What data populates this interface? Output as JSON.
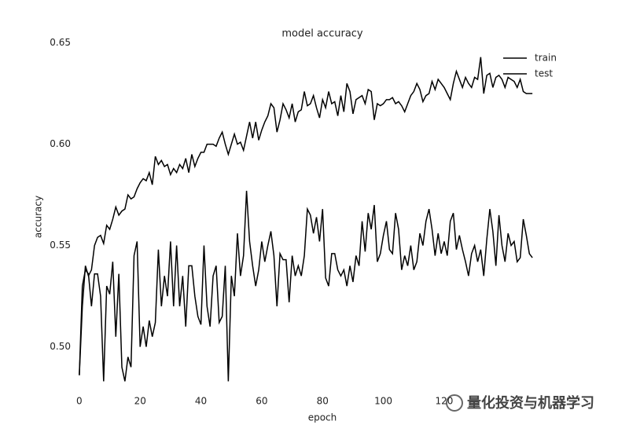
{
  "chart_data": {
    "type": "line",
    "title": "model accuracy",
    "x_label": "epoch",
    "y_label": "accuracy",
    "x": [
      0,
      1,
      2,
      3,
      4,
      5,
      6,
      7,
      8,
      9,
      10,
      11,
      12,
      13,
      14,
      15,
      16,
      17,
      18,
      19,
      20,
      21,
      22,
      23,
      24,
      25,
      26,
      27,
      28,
      29,
      30,
      31,
      32,
      33,
      34,
      35,
      36,
      37,
      38,
      39,
      40,
      41,
      42,
      43,
      44,
      45,
      46,
      47,
      48,
      49,
      50,
      51,
      52,
      53,
      54,
      55,
      56,
      57,
      58,
      59,
      60,
      61,
      62,
      63,
      64,
      65,
      66,
      67,
      68,
      69,
      70,
      71,
      72,
      73,
      74,
      75,
      76,
      77,
      78,
      79,
      80,
      81,
      82,
      83,
      84,
      85,
      86,
      87,
      88,
      89,
      90,
      91,
      92,
      93,
      94,
      95,
      96,
      97,
      98,
      99,
      100,
      101,
      102,
      103,
      104,
      105,
      106,
      107,
      108,
      109,
      110,
      111,
      112,
      113,
      114,
      115,
      116,
      117,
      118,
      119,
      120,
      121,
      122,
      123,
      124,
      125,
      126,
      127,
      128,
      129,
      130,
      131,
      132,
      133,
      134,
      135,
      136,
      137,
      138,
      139,
      140,
      141,
      142,
      143,
      144,
      145,
      146,
      147,
      148,
      149
    ],
    "series": [
      {
        "name": "train",
        "color": "#000000",
        "values": [
          0.486,
          0.52,
          0.54,
          0.535,
          0.538,
          0.55,
          0.554,
          0.555,
          0.551,
          0.56,
          0.558,
          0.563,
          0.569,
          0.565,
          0.567,
          0.568,
          0.575,
          0.573,
          0.574,
          0.578,
          0.581,
          0.583,
          0.582,
          0.586,
          0.58,
          0.594,
          0.59,
          0.592,
          0.589,
          0.59,
          0.585,
          0.588,
          0.586,
          0.59,
          0.588,
          0.593,
          0.586,
          0.595,
          0.589,
          0.593,
          0.596,
          0.596,
          0.6,
          0.6,
          0.6,
          0.599,
          0.603,
          0.606,
          0.6,
          0.595,
          0.6,
          0.605,
          0.6,
          0.601,
          0.597,
          0.604,
          0.611,
          0.603,
          0.611,
          0.602,
          0.607,
          0.611,
          0.614,
          0.62,
          0.618,
          0.606,
          0.612,
          0.62,
          0.617,
          0.613,
          0.62,
          0.611,
          0.616,
          0.617,
          0.626,
          0.619,
          0.62,
          0.624,
          0.618,
          0.613,
          0.622,
          0.618,
          0.626,
          0.62,
          0.621,
          0.614,
          0.624,
          0.616,
          0.63,
          0.626,
          0.615,
          0.622,
          0.623,
          0.624,
          0.62,
          0.627,
          0.626,
          0.612,
          0.62,
          0.619,
          0.62,
          0.622,
          0.622,
          0.623,
          0.62,
          0.621,
          0.619,
          0.616,
          0.62,
          0.624,
          0.626,
          0.63,
          0.627,
          0.621,
          0.624,
          0.625,
          0.631,
          0.627,
          0.632,
          0.63,
          0.628,
          0.625,
          0.622,
          0.63,
          0.636,
          0.632,
          0.628,
          0.633,
          0.63,
          0.628,
          0.633,
          0.632,
          0.643,
          0.625,
          0.634,
          0.635,
          0.628,
          0.633,
          0.634,
          0.632,
          0.628,
          0.633,
          0.632,
          0.631,
          0.628,
          0.632,
          0.626,
          0.625,
          0.625,
          0.625
        ]
      },
      {
        "name": "test",
        "color": "#000000",
        "values": [
          0.486,
          0.53,
          0.538,
          0.536,
          0.52,
          0.536,
          0.536,
          0.525,
          0.483,
          0.53,
          0.526,
          0.542,
          0.505,
          0.536,
          0.49,
          0.483,
          0.495,
          0.49,
          0.545,
          0.552,
          0.5,
          0.51,
          0.5,
          0.513,
          0.505,
          0.512,
          0.548,
          0.52,
          0.535,
          0.525,
          0.552,
          0.52,
          0.55,
          0.52,
          0.535,
          0.51,
          0.54,
          0.54,
          0.525,
          0.515,
          0.511,
          0.55,
          0.52,
          0.51,
          0.535,
          0.54,
          0.512,
          0.515,
          0.54,
          0.483,
          0.535,
          0.525,
          0.556,
          0.535,
          0.545,
          0.577,
          0.552,
          0.54,
          0.53,
          0.538,
          0.552,
          0.542,
          0.55,
          0.557,
          0.545,
          0.52,
          0.546,
          0.543,
          0.543,
          0.522,
          0.545,
          0.535,
          0.54,
          0.535,
          0.545,
          0.568,
          0.565,
          0.556,
          0.564,
          0.552,
          0.568,
          0.534,
          0.53,
          0.546,
          0.546,
          0.538,
          0.535,
          0.538,
          0.53,
          0.54,
          0.532,
          0.545,
          0.54,
          0.562,
          0.547,
          0.566,
          0.558,
          0.57,
          0.542,
          0.546,
          0.555,
          0.562,
          0.548,
          0.546,
          0.566,
          0.558,
          0.538,
          0.545,
          0.54,
          0.55,
          0.538,
          0.542,
          0.556,
          0.55,
          0.562,
          0.568,
          0.558,
          0.545,
          0.556,
          0.546,
          0.552,
          0.545,
          0.562,
          0.566,
          0.548,
          0.555,
          0.548,
          0.542,
          0.535,
          0.546,
          0.55,
          0.542,
          0.548,
          0.535,
          0.553,
          0.568,
          0.557,
          0.54,
          0.565,
          0.55,
          0.542,
          0.556,
          0.55,
          0.552,
          0.542,
          0.544,
          0.563,
          0.555,
          0.546,
          0.544
        ]
      }
    ],
    "xlim": [
      -1,
      150
    ],
    "xticks": [
      0,
      20,
      40,
      60,
      80,
      100,
      120
    ],
    "ylim": [
      0.482,
      0.658
    ],
    "yticks": [
      {
        "value": 0.5,
        "label": "0.50"
      },
      0.55,
      {
        "value": 0.6,
        "label": "0.60"
      },
      0.65
    ],
    "grid": false,
    "legend": "upper right"
  },
  "watermark": "量化投资与机器学习"
}
